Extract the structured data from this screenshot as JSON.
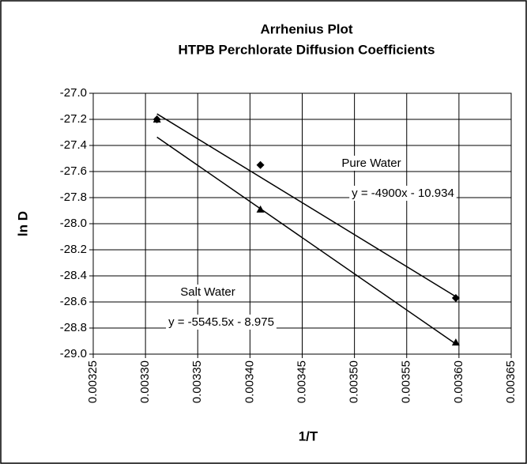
{
  "chart_data": {
    "type": "scatter",
    "title": "Arrhenius Plot",
    "subtitle": "HTPB Perchlorate Diffusion Coefficients",
    "x_label": "1/T",
    "y_label": "ln D",
    "xlim": [
      0.00325,
      0.00365
    ],
    "xticks": [
      0.00325,
      {
        "value": 0.0033,
        "label": "0.00330"
      },
      0.00335,
      {
        "value": 0.0034,
        "label": "0.00340"
      },
      0.00345,
      {
        "value": 0.0035,
        "label": "0.00350"
      },
      0.00355,
      {
        "value": 0.0036,
        "label": "0.00360"
      },
      0.00365
    ],
    "ylim": [
      -29.0,
      -27.0
    ],
    "yticks": [
      {
        "value": -27.0,
        "label": "-27.0"
      },
      -27.2,
      -27.4,
      -27.6,
      -27.8,
      {
        "value": -28.0,
        "label": "-28.0"
      },
      -28.2,
      -28.4,
      -28.6,
      -28.8,
      {
        "value": -29.0,
        "label": "-29.0"
      }
    ],
    "grid": true,
    "series": [
      {
        "name": "Pure Water",
        "color": "#000000",
        "marker": "diamond",
        "x": [
          0.003311,
          0.00341,
          0.003597
        ],
        "values": [
          -27.2,
          -27.55,
          -28.57
        ],
        "trendline": {
          "slope": -4900,
          "intercept": -10.934,
          "label": "y = -4900x - 10.934"
        }
      },
      {
        "name": "Salt Water",
        "color": "#000000",
        "marker": "triangle",
        "x": [
          0.003311,
          0.00341,
          0.003597
        ],
        "values": [
          -27.2,
          -27.89,
          -28.91
        ],
        "trendline": {
          "slope": -5545.5,
          "intercept": -8.975,
          "label": "y = -5545.5x - 8.975"
        }
      }
    ]
  }
}
